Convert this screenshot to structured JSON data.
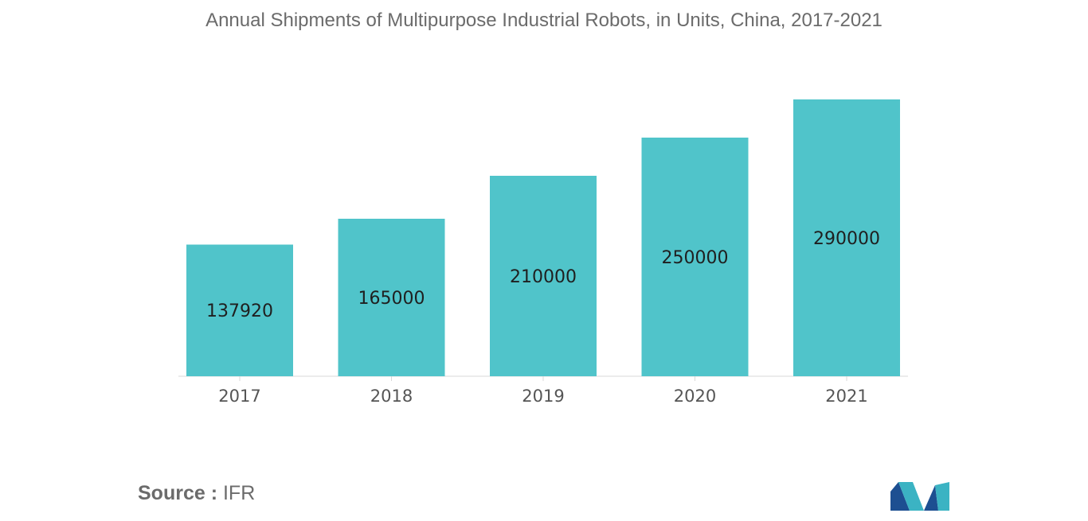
{
  "chart_data": {
    "type": "bar",
    "title": "Annual Shipments of Multipurpose Industrial Robots, in Units, China, 2017-2021",
    "categories": [
      "2017",
      "2018",
      "2019",
      "2020",
      "2021"
    ],
    "values": [
      137920,
      165000,
      210000,
      250000,
      290000
    ],
    "xlabel": "",
    "ylabel": "",
    "ylim": [
      0,
      290000
    ],
    "grid": false,
    "legend": "none",
    "bar_color": "#50c4ca"
  },
  "source": {
    "label": "Source :",
    "value": "IFR"
  },
  "logo": {
    "name": "mordor-intelligence-logo",
    "colors": [
      "#1d4f91",
      "#3bb3c3"
    ]
  }
}
